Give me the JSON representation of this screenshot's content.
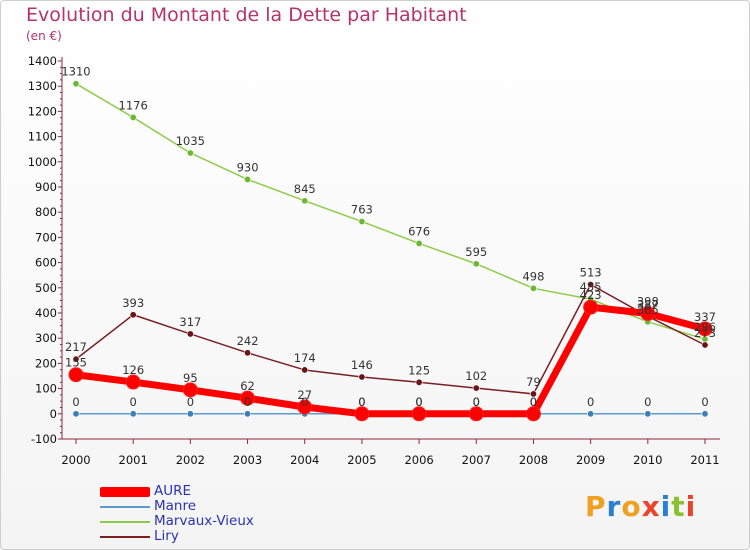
{
  "title": "Evolution du Montant de la Dette par Habitant",
  "unit": "(en €)",
  "brand": {
    "text": "Proxiti",
    "letter_colors": [
      "#f0a020",
      "#2a7fd0",
      "#f0a020",
      "#e8452a",
      "#2a7fd0",
      "#88c030",
      "#e8452a"
    ]
  },
  "chart_data": {
    "type": "line",
    "title": "Evolution du Montant de la Dette par Habitant",
    "ylabel": "(en €)",
    "xlabel": "",
    "x": [
      "2000",
      "2001",
      "2002",
      "2003",
      "2004",
      "2005",
      "2006",
      "2007",
      "2008",
      "2009",
      "2010",
      "2011"
    ],
    "ylim": [
      -100,
      1400
    ],
    "yticks": [
      "-100",
      "0",
      "100",
      "200",
      "300",
      "400",
      "500",
      "600",
      "700",
      "800",
      "900",
      "1000",
      "1100",
      "1200",
      "1300",
      "1400"
    ],
    "grid": false,
    "legend_position": "bottom-left",
    "series": [
      {
        "name": "AURE",
        "color": "#ff0000",
        "values": [
          155,
          126,
          95,
          62,
          27,
          0,
          0,
          0,
          0,
          423,
          398,
          337
        ],
        "labels": [
          "155",
          "126",
          "95",
          "62",
          "27",
          "0",
          "0",
          "0",
          "0",
          "423",
          "398",
          "337"
        ]
      },
      {
        "name": "Manre",
        "color": "#5a9ccc",
        "values": [
          0,
          0,
          0,
          0,
          0,
          0,
          0,
          0,
          0,
          0,
          0,
          0
        ],
        "labels": [
          "0",
          "0",
          "0",
          "0",
          "0",
          "0",
          "0",
          "0",
          "0",
          "0",
          "0",
          "0"
        ]
      },
      {
        "name": "Marvaux-Vieux",
        "color": "#8dcc4a",
        "values": [
          1310,
          1176,
          1035,
          930,
          845,
          763,
          676,
          595,
          498,
          455,
          365,
          296
        ],
        "labels": [
          "1310",
          "1176",
          "1035",
          "930",
          "845",
          "763",
          "676",
          "595",
          "498",
          "455",
          "365",
          "296"
        ]
      },
      {
        "name": "Liry",
        "color": "#7a1f22",
        "values": [
          217,
          393,
          317,
          242,
          174,
          146,
          125,
          102,
          79,
          513,
          387,
          273
        ],
        "labels": [
          "217",
          "393",
          "317",
          "242",
          "174",
          "146",
          "125",
          "102",
          "79",
          "513",
          "387",
          "273"
        ]
      }
    ]
  }
}
